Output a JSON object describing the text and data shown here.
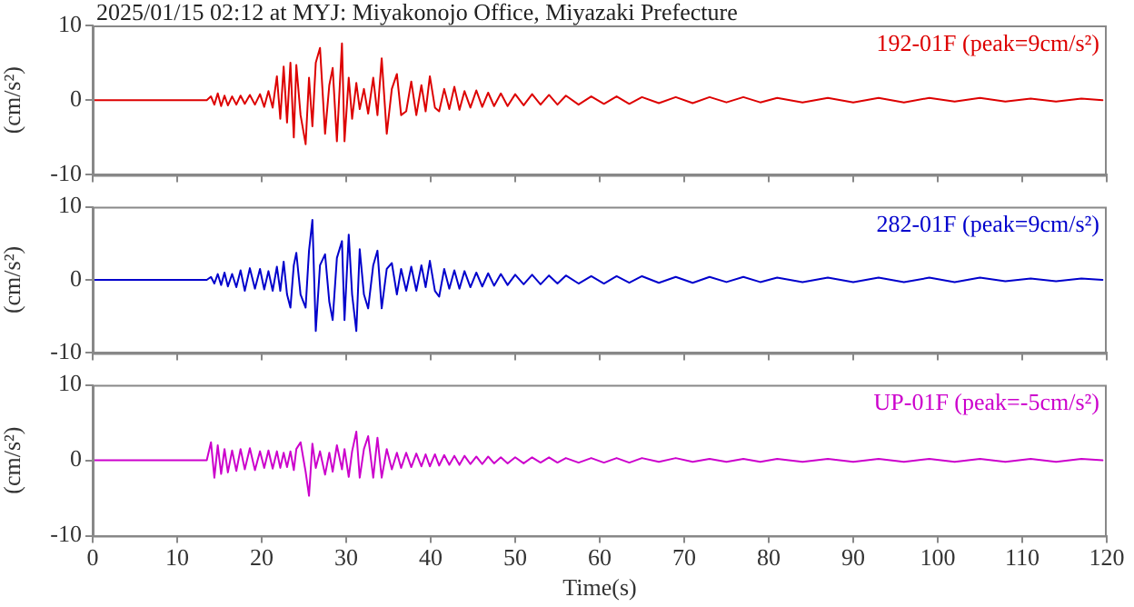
{
  "chart_data": [
    {
      "type": "line",
      "title": "2025/01/15 02:12 at MYJ: Miyakonojo Office, Miyazaki Prefecture",
      "ylabel": "(cm/s²)",
      "annotations": [
        "192-01F (peak=9cm/s²)"
      ],
      "x": [
        0,
        13.5,
        14,
        14.4,
        14.8,
        15.2,
        15.6,
        16,
        16.5,
        17,
        17.5,
        18,
        18.6,
        19.2,
        19.8,
        20.3,
        20.8,
        21.3,
        21.8,
        22.2,
        22.6,
        23,
        23.4,
        23.8,
        24.1,
        24.6,
        25.2,
        25.6,
        26,
        26.4,
        26.9,
        27.5,
        28,
        28.4,
        28.9,
        29.5,
        29.8,
        30.3,
        30.7,
        31.2,
        31.6,
        32.1,
        32.6,
        33.2,
        33.7,
        34.2,
        34.8,
        35.4,
        36,
        36.5,
        37.1,
        37.7,
        38.3,
        38.9,
        39.4,
        39.9,
        40.5,
        41,
        41.6,
        42.2,
        42.8,
        43.4,
        44,
        44.7,
        45.4,
        46.1,
        46.8,
        47.5,
        48.3,
        49.1,
        50,
        51,
        52,
        53,
        54,
        55,
        56,
        57.5,
        59,
        60.5,
        62,
        63.5,
        65,
        67,
        69,
        71,
        73,
        75,
        77,
        79,
        81,
        84,
        87,
        90,
        93,
        96,
        99,
        102,
        105,
        108,
        111,
        114,
        117,
        119.5
      ],
      "series": [
        {
          "color": "#dd0000",
          "values": [
            0,
            0,
            0.5,
            -0.6,
            0.9,
            -0.8,
            0.6,
            -0.7,
            0.5,
            -0.6,
            0.6,
            -0.5,
            0.7,
            -0.6,
            0.8,
            -0.9,
            1.2,
            -1,
            3.2,
            -2.5,
            4.5,
            -3,
            5,
            -5,
            4.7,
            -2,
            -5.9,
            3,
            -3.5,
            5,
            7,
            -4.5,
            2,
            4.3,
            -5.5,
            7.6,
            -5.5,
            3,
            -2.5,
            2.3,
            -1.2,
            1.5,
            -1.8,
            3,
            -2,
            5.6,
            -4.5,
            1.5,
            3.5,
            -2,
            -1.5,
            2.5,
            -2,
            2,
            -1.5,
            3.2,
            -1,
            -1.5,
            1.5,
            -1.2,
            1.8,
            -1.3,
            1.2,
            -1,
            1.3,
            -0.9,
            1,
            -0.8,
            0.9,
            -0.8,
            0.8,
            -0.7,
            0.8,
            -0.6,
            0.7,
            -0.6,
            0.6,
            -0.6,
            0.5,
            -0.5,
            0.5,
            -0.5,
            0.4,
            -0.4,
            0.4,
            -0.4,
            0.4,
            -0.3,
            0.4,
            -0.3,
            0.3,
            -0.3,
            0.3,
            -0.3,
            0.3,
            -0.3,
            0.3,
            -0.2,
            0.3,
            -0.2,
            0.2,
            -0.2,
            0.2,
            0
          ]
        }
      ],
      "xlim": [
        0,
        120
      ],
      "xticks": [
        0,
        10,
        20,
        30,
        40,
        50,
        60,
        70,
        80,
        90,
        100,
        110,
        120
      ],
      "ylim": [
        -10,
        10
      ],
      "yticks": [
        -10,
        0,
        10
      ],
      "tick_labels": "y",
      "grid": false,
      "marker": "none",
      "line_style": "solid"
    },
    {
      "type": "line",
      "ylabel": "(cm/s²)",
      "annotations": [
        "282-01F (peak=9cm/s²)"
      ],
      "x": [
        0,
        13.5,
        14,
        14.4,
        14.8,
        15.2,
        15.6,
        16,
        16.5,
        17,
        17.5,
        18,
        18.6,
        19.2,
        19.8,
        20.3,
        20.8,
        21.3,
        21.8,
        22.2,
        22.6,
        23,
        23.4,
        23.8,
        24.1,
        24.6,
        25.2,
        25.6,
        26,
        26.4,
        26.9,
        27.5,
        28,
        28.4,
        28.9,
        29.5,
        29.8,
        30.3,
        30.7,
        31.2,
        31.6,
        32.1,
        32.6,
        33.2,
        33.7,
        34.2,
        34.8,
        35.4,
        36,
        36.5,
        37.1,
        37.7,
        38.3,
        38.9,
        39.4,
        39.9,
        40.5,
        41,
        41.6,
        42.2,
        42.8,
        43.4,
        44,
        44.7,
        45.4,
        46.1,
        46.8,
        47.5,
        48.3,
        49.1,
        50,
        51,
        52,
        53,
        54,
        55,
        56,
        57.5,
        59,
        60.5,
        62,
        63.5,
        65,
        67,
        69,
        71,
        73,
        75,
        77,
        79,
        81,
        84,
        87,
        90,
        93,
        96,
        99,
        102,
        105,
        108,
        111,
        114,
        117,
        119.5
      ],
      "series": [
        {
          "color": "#0000cc",
          "values": [
            0,
            0,
            0.4,
            -0.5,
            0.8,
            -0.7,
            1,
            -0.9,
            0.8,
            -1,
            1.3,
            -1.5,
            1.6,
            -1.2,
            1.5,
            -1.3,
            1.2,
            -1.5,
            1.8,
            -1.5,
            2.5,
            -2,
            -3.8,
            2,
            3.7,
            -2,
            -3.8,
            4,
            8.2,
            -7,
            2,
            3.5,
            -3,
            -5.5,
            3,
            5.3,
            -5.5,
            6.2,
            -2,
            -7,
            4.2,
            -2,
            -3.9,
            2,
            4,
            -3.9,
            1.5,
            2.3,
            -2,
            1.5,
            -1.5,
            1.8,
            -1.5,
            2,
            -1,
            2.6,
            -1.5,
            -2.3,
            1.5,
            -1.2,
            1.3,
            -1.2,
            1.2,
            -1,
            1,
            -0.9,
            0.9,
            -0.8,
            0.8,
            -0.7,
            0.7,
            -0.6,
            0.7,
            -0.6,
            0.6,
            -0.5,
            0.6,
            -0.5,
            0.5,
            -0.5,
            0.5,
            -0.4,
            0.5,
            -0.4,
            0.4,
            -0.4,
            0.4,
            -0.3,
            0.4,
            -0.3,
            0.3,
            -0.3,
            0.3,
            -0.3,
            0.3,
            -0.3,
            0.3,
            -0.3,
            0.3,
            -0.2,
            0.2,
            -0.2,
            0.2,
            0
          ]
        }
      ],
      "xlim": [
        0,
        120
      ],
      "xticks": [
        0,
        10,
        20,
        30,
        40,
        50,
        60,
        70,
        80,
        90,
        100,
        110,
        120
      ],
      "ylim": [
        -10,
        10
      ],
      "yticks": [
        -10,
        0,
        10
      ],
      "tick_labels": "y",
      "grid": false,
      "marker": "none",
      "line_style": "solid"
    },
    {
      "type": "line",
      "ylabel": "(cm/s²)",
      "xlabel": "Time(s)",
      "annotations": [
        "UP-01F (peak=-5cm/s²)"
      ],
      "x": [
        0,
        13.5,
        14,
        14.4,
        14.8,
        15.2,
        15.6,
        16,
        16.5,
        17,
        17.5,
        18,
        18.6,
        19.2,
        19.8,
        20.3,
        20.8,
        21.3,
        21.8,
        22.2,
        22.6,
        23,
        23.4,
        23.8,
        24.1,
        24.6,
        25.2,
        25.6,
        26,
        26.4,
        26.9,
        27.5,
        28,
        28.4,
        28.9,
        29.5,
        29.8,
        30.3,
        30.7,
        31.2,
        31.6,
        32.1,
        32.6,
        33.2,
        33.7,
        34.2,
        34.8,
        35.4,
        36,
        36.5,
        37.1,
        37.7,
        38.3,
        38.9,
        39.4,
        39.9,
        40.5,
        41,
        41.6,
        42.2,
        42.8,
        43.4,
        44,
        44.7,
        45.4,
        46.1,
        46.8,
        47.5,
        48.3,
        49.1,
        50,
        51,
        52,
        53,
        54,
        55,
        56,
        57.5,
        59,
        60.5,
        62,
        63.5,
        65,
        67,
        69,
        71,
        73,
        75,
        77,
        79,
        81,
        84,
        87,
        90,
        93,
        96,
        99,
        102,
        105,
        108,
        111,
        114,
        117,
        119.5
      ],
      "series": [
        {
          "color": "#cc00cc",
          "values": [
            0,
            0,
            2.4,
            -2.3,
            2,
            -1.8,
            1.5,
            -1.6,
            1.3,
            -1.4,
            1.5,
            -1.2,
            1.6,
            -1.3,
            1.2,
            -1,
            1.3,
            -1.1,
            1.2,
            -1,
            1,
            -0.9,
            1.2,
            -1.3,
            1.5,
            2.4,
            -1.5,
            -4.7,
            2.2,
            -1,
            1.2,
            -1.9,
            1,
            -1.5,
            2,
            -1.2,
            1.5,
            -2.2,
            1.2,
            3.8,
            -2.3,
            1.5,
            3.2,
            -2.3,
            3,
            -2.3,
            1.5,
            -1.2,
            1,
            -1,
            1,
            -0.9,
            0.9,
            -0.8,
            0.8,
            -0.8,
            0.8,
            -0.7,
            0.7,
            -0.6,
            0.6,
            -0.6,
            0.6,
            -0.5,
            0.5,
            -0.5,
            0.5,
            -0.4,
            0.4,
            -0.4,
            0.4,
            -0.4,
            0.4,
            -0.3,
            0.4,
            -0.3,
            0.3,
            -0.3,
            0.3,
            -0.3,
            0.3,
            -0.3,
            0.3,
            -0.2,
            0.3,
            -0.2,
            0.2,
            -0.2,
            0.2,
            -0.2,
            0.2,
            -0.2,
            0.2,
            -0.2,
            0.2,
            -0.2,
            0.2,
            -0.2,
            0.2,
            -0.2,
            0.2,
            -0.2,
            0.2,
            0
          ]
        }
      ],
      "xlim": [
        0,
        120
      ],
      "xticks": [
        0,
        10,
        20,
        30,
        40,
        50,
        60,
        70,
        80,
        90,
        100,
        110,
        120
      ],
      "ylim": [
        -10,
        10
      ],
      "yticks": [
        -10,
        0,
        10
      ],
      "grid": false,
      "marker": "none",
      "line_style": "solid"
    }
  ]
}
